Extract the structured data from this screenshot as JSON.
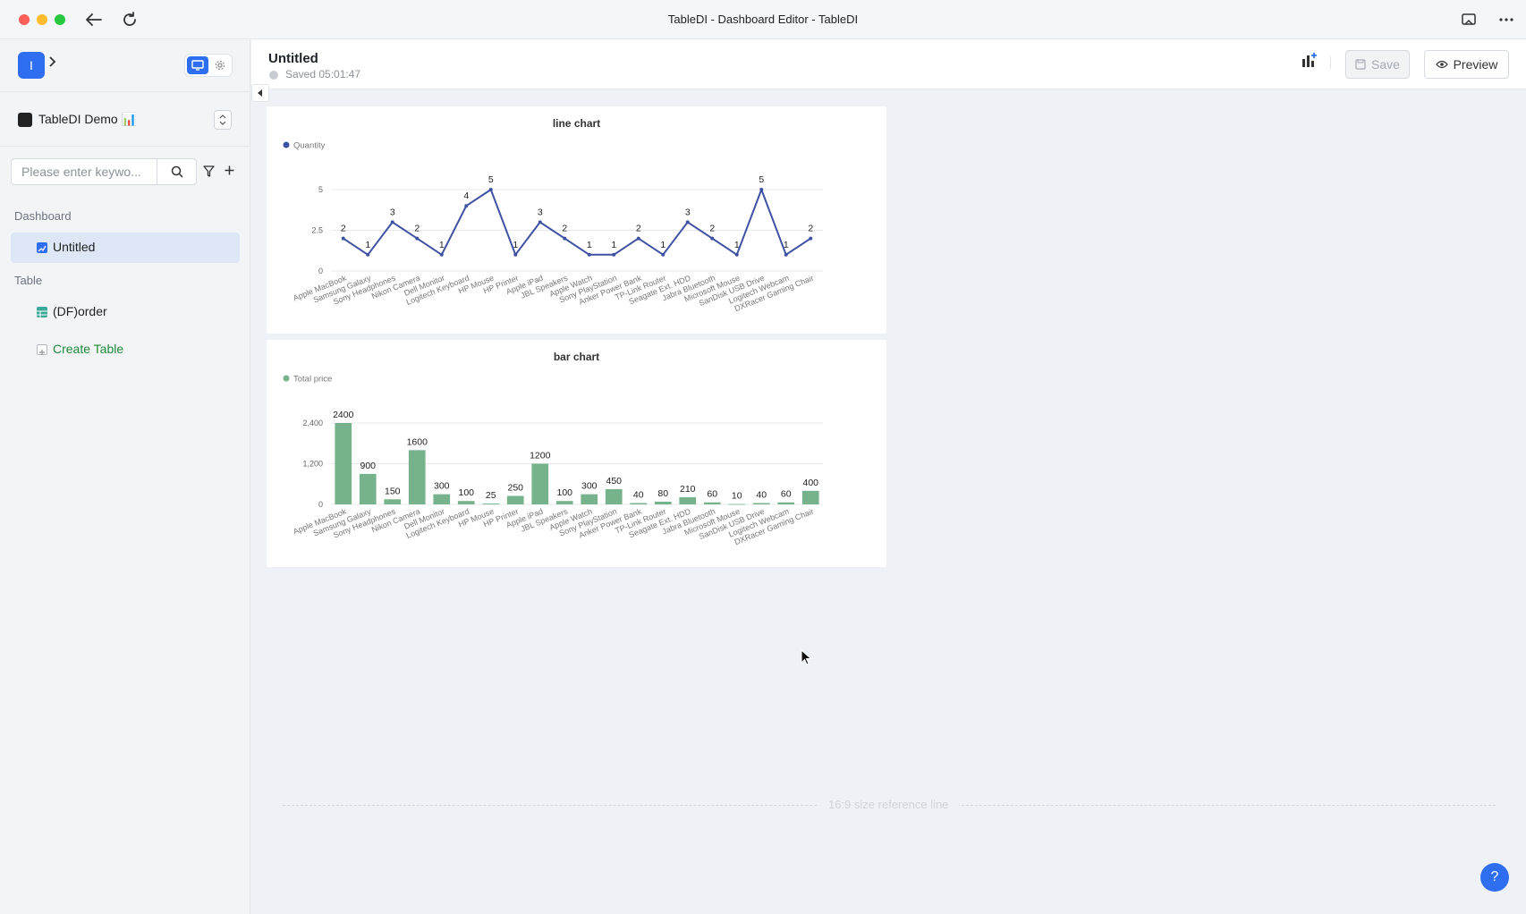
{
  "window": {
    "title": "TableDI - Dashboard Editor - TableDI"
  },
  "sidebar": {
    "logo_letter": "I",
    "workspace_name": "TableDI Demo 📊",
    "search_placeholder": "Please enter keywo...",
    "sections": {
      "dashboard_label": "Dashboard",
      "table_label": "Table"
    },
    "dashboard_items": [
      {
        "label": "Untitled",
        "active": true
      }
    ],
    "table_items": [
      {
        "label": "(DF)order"
      }
    ],
    "create_table_label": "Create Table"
  },
  "header": {
    "title": "Untitled",
    "saved_status": "Saved 05:01:47",
    "save_label": "Save",
    "preview_label": "Preview"
  },
  "canvas": {
    "reference_line_label": "16:9 size reference line"
  },
  "help_label": "?",
  "colors": {
    "line_series": "#3f51a3",
    "bar_series": "#76b38c",
    "accent": "#2f6ef0"
  },
  "chart_data": [
    {
      "type": "line",
      "title": "line chart",
      "categories": [
        "Apple MacBook",
        "Samsung Galaxy",
        "Sony Headphones",
        "Nikon Camera",
        "Dell Monitor",
        "Logitech Keyboard",
        "HP Mouse",
        "HP Printer",
        "Apple iPad",
        "JBL Speakers",
        "Apple Watch",
        "Sony PlayStation",
        "Anker Power Bank",
        "TP-Link Router",
        "Seagate Ext. HDD",
        "Jabra Bluetooth",
        "Microsoft Mouse",
        "SanDisk USB Drive",
        "Logitech Webcam",
        "DXRacer Gaming Chair"
      ],
      "series": [
        {
          "name": "Quantity",
          "values": [
            2,
            1,
            3,
            2,
            1,
            4,
            5,
            1,
            3,
            2,
            1,
            1,
            2,
            1,
            3,
            2,
            1,
            5,
            1,
            2
          ]
        }
      ],
      "yticks": [
        "0",
        "2.5",
        "5"
      ],
      "ylim": [
        0,
        5
      ],
      "legend": "top-left",
      "grid": true
    },
    {
      "type": "bar",
      "title": "bar chart",
      "categories": [
        "Apple MacBook",
        "Samsung Galaxy",
        "Sony Headphones",
        "Nikon Camera",
        "Dell Monitor",
        "Logitech Keyboard",
        "HP Mouse",
        "HP Printer",
        "Apple iPad",
        "JBL Speakers",
        "Apple Watch",
        "Sony PlayStation",
        "Anker Power Bank",
        "TP-Link Router",
        "Seagate Ext. HDD",
        "Jabra Bluetooth",
        "Microsoft Mouse",
        "SanDisk USB Drive",
        "Logitech Webcam",
        "DXRacer Gaming Chair"
      ],
      "series": [
        {
          "name": "Total price",
          "values": [
            2400,
            900,
            150,
            1600,
            300,
            100,
            25,
            250,
            1200,
            100,
            300,
            450,
            40,
            80,
            210,
            60,
            10,
            40,
            60,
            400
          ]
        }
      ],
      "yticks": [
        "0",
        "1,200",
        "2,400"
      ],
      "ylim": [
        0,
        2400
      ],
      "legend": "top-left",
      "grid": true
    }
  ]
}
